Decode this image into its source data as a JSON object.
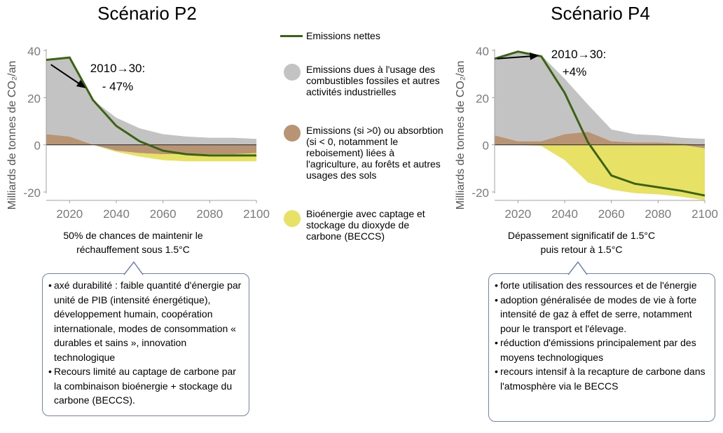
{
  "chart_data": [
    {
      "type": "area",
      "title": "Scénario P2",
      "ylabel": "Milliards de tonnes de CO₂/an",
      "ylim": [
        -20,
        40
      ],
      "yticks": [
        40,
        20,
        0,
        -20
      ],
      "xlim": [
        2010,
        2100
      ],
      "xticks": [
        2020,
        2040,
        2060,
        2080,
        2100
      ],
      "x": [
        2010,
        2020,
        2030,
        2040,
        2050,
        2060,
        2070,
        2080,
        2090,
        2100
      ],
      "fossil_top": [
        36,
        37,
        19,
        11.5,
        7,
        4.5,
        3.5,
        3,
        3,
        2.5
      ],
      "afolu_top": [
        4.5,
        3.5,
        0,
        0,
        0,
        0,
        0,
        0,
        0,
        0
      ],
      "afolu_bottom": [
        0,
        0,
        0,
        -2.5,
        -3.5,
        -4,
        -4,
        -4,
        -4,
        -3.5
      ],
      "beccs_bottom": [
        0,
        0,
        0,
        -3,
        -5,
        -6.5,
        -7,
        -7,
        -7,
        -7
      ],
      "net": [
        36,
        37,
        19,
        8,
        1.5,
        -2.5,
        -4,
        -4.5,
        -4.5,
        -4.5
      ],
      "annotation": [
        "2010→30:",
        "- 47%"
      ],
      "arrow": {
        "from": [
          2012,
          34
        ],
        "to": [
          2027,
          24
        ]
      }
    },
    {
      "type": "area",
      "title": "Scénario P4",
      "ylabel": "Milliards de tonnes de CO₂/an",
      "ylim": [
        -20,
        40
      ],
      "yticks": [
        40,
        20,
        0,
        -20
      ],
      "xlim": [
        2010,
        2100
      ],
      "xticks": [
        2020,
        2040,
        2060,
        2080,
        2100
      ],
      "x": [
        2010,
        2020,
        2030,
        2040,
        2050,
        2060,
        2070,
        2080,
        2090,
        2100
      ],
      "fossil_top": [
        36.5,
        39.5,
        38,
        28,
        17,
        6.5,
        4.5,
        4,
        3,
        2.5
      ],
      "afolu_top": [
        4,
        1.5,
        1.5,
        4.5,
        5.5,
        1.5,
        1,
        1,
        0.5,
        0
      ],
      "afolu_bottom": [
        0,
        0,
        0,
        0,
        0,
        0,
        0,
        0,
        0,
        -1.5
      ],
      "beccs_bottom": [
        0,
        0,
        -0.5,
        -6.5,
        -16,
        -19,
        -20.5,
        -21,
        -22,
        -23.5
      ],
      "net": [
        36.5,
        39.5,
        37.5,
        22,
        1,
        -13,
        -16.5,
        -18,
        -19.5,
        -21.5
      ],
      "annotation": [
        "2010→30:",
        "+4%"
      ],
      "arrow": {
        "from": [
          2011,
          36.5
        ],
        "to": [
          2029,
          37.8
        ]
      }
    }
  ],
  "colors": {
    "net": "#3a6314",
    "fossil": "#c3c3c3",
    "afolu": "#b99474",
    "beccs": "#e7e165",
    "axis": "#a0a0a0"
  },
  "legend": {
    "net": "Emissions nettes",
    "fossil": "Emissions dues à l'usage des combustibles fossiles et autres activités industrielles",
    "afolu": "Emissions (si >0) ou absorbtion (si < 0, notamment le reboisement) liées à l'agriculture, au forêts et autres usages des sols",
    "beccs": "Bioénergie avec captage et stockage du dioxyde de carbone (BECCS)"
  },
  "left": {
    "caption": "50% de chances de maintenir le réchauffement sous 1.5°C",
    "bullets": [
      "axé durabilité : faible quantité d'énergie par unité de PIB (intensité énergétique), développement humain, coopération internationale, modes de consommation « durables et sains », innovation technologique",
      "Recours limité au captage de carbone par la combinaison bioénergie + stockage du carbone (BECCS)."
    ]
  },
  "right": {
    "caption": "Dépassement significatif de 1.5°C puis retour à 1.5°C",
    "bullets": [
      "forte utilisation des ressources et de l'énergie",
      "adoption généralisée de modes de vie à forte intensité de gaz à effet de serre, notamment pour le transport et l'élevage.",
      "réduction d'émissions principalement par des moyens technologiques",
      "recours intensif à la recapture de carbone dans l'atmosphère via le BECCS"
    ]
  }
}
